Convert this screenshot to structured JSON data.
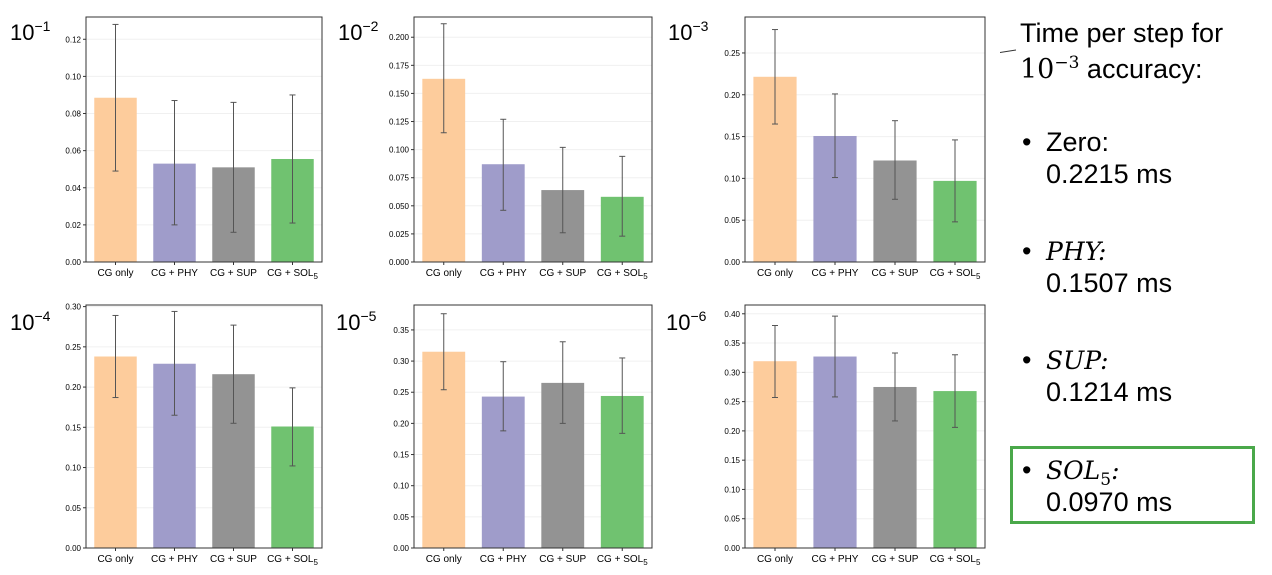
{
  "colors": {
    "cg_only": "#fdcc9c",
    "phy": "#9f9cca",
    "sup": "#939393",
    "sol": "#70c270",
    "error_bar": "#555555",
    "highlight": "#4aa84a"
  },
  "annotation": {
    "title_line1": "Time per step for",
    "title_base": "10",
    "title_exp": "−3",
    "title_suffix": " accuracy:",
    "items": [
      {
        "bullet": "•",
        "name": "Zero:",
        "math": false,
        "sub": "",
        "value": "0.2215 ms"
      },
      {
        "bullet": "•",
        "name": "PHY:",
        "math": true,
        "sub": "",
        "value": "0.1507 ms"
      },
      {
        "bullet": "•",
        "name": "SUP:",
        "math": true,
        "sub": "",
        "value": "0.1214 ms"
      },
      {
        "bullet": "•",
        "name": "SOL",
        "math": true,
        "sub": "5",
        "name_suffix": ":",
        "value": "0.0970 ms"
      }
    ]
  },
  "chart_data": [
    {
      "type": "bar",
      "panel_label_base": "10",
      "panel_label_exp": "−1",
      "categories": [
        "CG only",
        "CG + PHY",
        "CG + SUP",
        "CG + SOL"
      ],
      "category_subscripts": [
        "",
        "",
        "",
        "5"
      ],
      "values": [
        0.0885,
        0.053,
        0.051,
        0.0555
      ],
      "err_low": [
        0.049,
        0.02,
        0.016,
        0.021
      ],
      "err_high": [
        0.128,
        0.087,
        0.086,
        0.09
      ],
      "ylim": [
        0,
        0.132
      ],
      "yticks": [
        0.0,
        0.02,
        0.04,
        0.06,
        0.08,
        0.1,
        0.12
      ],
      "ytick_labels": [
        "0.00",
        "0.02",
        "0.04",
        "0.06",
        "0.08",
        "0.10",
        "0.12"
      ]
    },
    {
      "type": "bar",
      "panel_label_base": "10",
      "panel_label_exp": "−2",
      "categories": [
        "CG only",
        "CG + PHY",
        "CG + SUP",
        "CG + SOL"
      ],
      "category_subscripts": [
        "",
        "",
        "",
        "5"
      ],
      "values": [
        0.163,
        0.087,
        0.064,
        0.058
      ],
      "err_low": [
        0.115,
        0.046,
        0.026,
        0.023
      ],
      "err_high": [
        0.212,
        0.127,
        0.102,
        0.094
      ],
      "ylim": [
        0,
        0.218
      ],
      "yticks": [
        0.0,
        0.025,
        0.05,
        0.075,
        0.1,
        0.125,
        0.15,
        0.175,
        0.2
      ],
      "ytick_labels": [
        "0.000",
        "0.025",
        "0.050",
        "0.075",
        "0.100",
        "0.125",
        "0.150",
        "0.175",
        "0.200"
      ]
    },
    {
      "type": "bar",
      "panel_label_base": "10",
      "panel_label_exp": "−3",
      "categories": [
        "CG only",
        "CG + PHY",
        "CG + SUP",
        "CG + SOL"
      ],
      "category_subscripts": [
        "",
        "",
        "",
        "5"
      ],
      "values": [
        0.2215,
        0.1507,
        0.1214,
        0.097
      ],
      "err_low": [
        0.165,
        0.101,
        0.075,
        0.048
      ],
      "err_high": [
        0.278,
        0.201,
        0.169,
        0.146
      ],
      "ylim": [
        0,
        0.293
      ],
      "yticks": [
        0.0,
        0.05,
        0.1,
        0.15,
        0.2,
        0.25
      ],
      "ytick_labels": [
        "0.00",
        "0.05",
        "0.10",
        "0.15",
        "0.20",
        "0.25"
      ]
    },
    {
      "type": "bar",
      "panel_label_base": "10",
      "panel_label_exp": "−4",
      "categories": [
        "CG only",
        "CG + PHY",
        "CG + SUP",
        "CG + SOL"
      ],
      "category_subscripts": [
        "",
        "",
        "",
        "5"
      ],
      "values": [
        0.238,
        0.229,
        0.216,
        0.151
      ],
      "err_low": [
        0.187,
        0.165,
        0.155,
        0.102
      ],
      "err_high": [
        0.289,
        0.294,
        0.277,
        0.199
      ],
      "ylim": [
        0,
        0.302
      ],
      "yticks": [
        0.0,
        0.05,
        0.1,
        0.15,
        0.2,
        0.25,
        0.3
      ],
      "ytick_labels": [
        "0.00",
        "0.05",
        "0.10",
        "0.15",
        "0.20",
        "0.25",
        "0.30"
      ]
    },
    {
      "type": "bar",
      "panel_label_base": "10",
      "panel_label_exp": "−5",
      "categories": [
        "CG only",
        "CG + PHY",
        "CG + SUP",
        "CG + SOL"
      ],
      "category_subscripts": [
        "",
        "",
        "",
        "5"
      ],
      "values": [
        0.315,
        0.243,
        0.265,
        0.244
      ],
      "err_low": [
        0.254,
        0.188,
        0.2,
        0.184
      ],
      "err_high": [
        0.376,
        0.299,
        0.331,
        0.305
      ],
      "ylim": [
        0,
        0.39
      ],
      "yticks": [
        0.0,
        0.05,
        0.1,
        0.15,
        0.2,
        0.25,
        0.3,
        0.35
      ],
      "ytick_labels": [
        "0.00",
        "0.05",
        "0.10",
        "0.15",
        "0.20",
        "0.25",
        "0.30",
        "0.35"
      ]
    },
    {
      "type": "bar",
      "panel_label_base": "10",
      "panel_label_exp": "−6",
      "categories": [
        "CG only",
        "CG + PHY",
        "CG + SUP",
        "CG + SOL"
      ],
      "category_subscripts": [
        "",
        "",
        "",
        "5"
      ],
      "values": [
        0.319,
        0.327,
        0.275,
        0.268
      ],
      "err_low": [
        0.257,
        0.258,
        0.217,
        0.206
      ],
      "err_high": [
        0.38,
        0.396,
        0.333,
        0.33
      ],
      "ylim": [
        0,
        0.415
      ],
      "yticks": [
        0.0,
        0.05,
        0.1,
        0.15,
        0.2,
        0.25,
        0.3,
        0.35,
        0.4
      ],
      "ytick_labels": [
        "0.00",
        "0.05",
        "0.10",
        "0.15",
        "0.20",
        "0.25",
        "0.30",
        "0.35",
        "0.40"
      ]
    }
  ]
}
